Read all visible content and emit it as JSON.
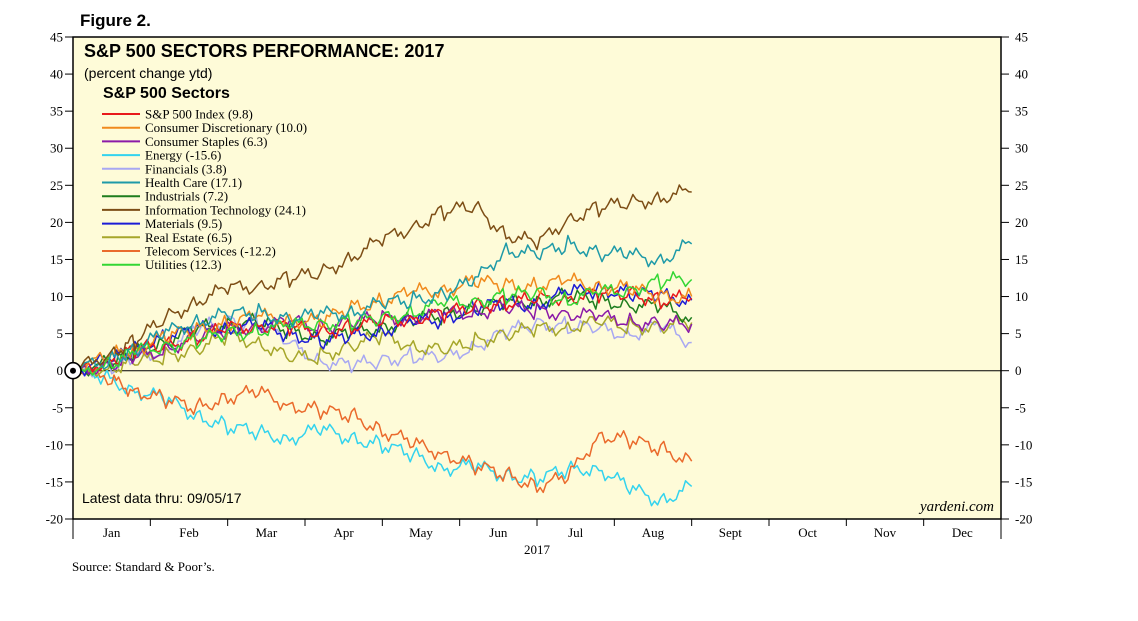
{
  "figure_label": "Figure 2.",
  "source": "Source: Standard & Poor’s.",
  "colors": {
    "background": "#fefbd8",
    "frame": "#000000",
    "zero_line": "#000000"
  },
  "chart_data": {
    "type": "line",
    "title": "S&P 500 SECTORS PERFORMANCE: 2017",
    "subtitle": "(percent change ytd)",
    "legend_title": "S&P 500 Sectors",
    "legend_position": "top-left",
    "note": "Latest data thru: 09/05/17",
    "watermark": "yardeni.com",
    "xlabel": "2017",
    "ylabel": "",
    "ylim": [
      -20,
      45
    ],
    "yticks": [
      -20,
      -15,
      -10,
      -5,
      0,
      5,
      10,
      15,
      20,
      25,
      30,
      35,
      40,
      45
    ],
    "ytick_labels": [
      "-20",
      "-15",
      "-10",
      "-5",
      "0",
      "5",
      "10",
      "15",
      "20",
      "25",
      "30",
      "35",
      "40",
      "45"
    ],
    "xlim": [
      0,
      12
    ],
    "months": [
      "Jan",
      "Feb",
      "Mar",
      "Apr",
      "May",
      "Jun",
      "Jul",
      "Aug",
      "Sept",
      "Oct",
      "Nov",
      "Dec"
    ],
    "x_unit": "months since Jan 1",
    "series": [
      {
        "name": "S&P 500 Index (9.8)",
        "color": "#e8191b",
        "points": [
          [
            0,
            0
          ],
          [
            0.5,
            1.5
          ],
          [
            0.8,
            2.8
          ],
          [
            1.2,
            3.5
          ],
          [
            1.6,
            4.5
          ],
          [
            2.0,
            5.6
          ],
          [
            2.4,
            6.2
          ],
          [
            2.8,
            5.8
          ],
          [
            3.2,
            5.2
          ],
          [
            3.6,
            6.0
          ],
          [
            4.0,
            6.5
          ],
          [
            4.4,
            7.2
          ],
          [
            4.8,
            7.5
          ],
          [
            5.2,
            8.8
          ],
          [
            5.6,
            9.2
          ],
          [
            6.0,
            9.5
          ],
          [
            6.4,
            10.0
          ],
          [
            6.8,
            10.2
          ],
          [
            7.2,
            10.5
          ],
          [
            7.6,
            9.5
          ],
          [
            8.0,
            9.8
          ]
        ]
      },
      {
        "name": "Consumer Discretionary (10.0)",
        "color": "#f08a1d",
        "points": [
          [
            0,
            0
          ],
          [
            0.5,
            2.0
          ],
          [
            0.8,
            3.0
          ],
          [
            1.2,
            4.5
          ],
          [
            1.6,
            5.5
          ],
          [
            2.0,
            6.5
          ],
          [
            2.4,
            7.2
          ],
          [
            2.8,
            7.0
          ],
          [
            3.2,
            6.5
          ],
          [
            3.6,
            8.5
          ],
          [
            4.0,
            9.5
          ],
          [
            4.4,
            10.5
          ],
          [
            4.8,
            11.0
          ],
          [
            5.2,
            12.0
          ],
          [
            5.6,
            11.5
          ],
          [
            6.0,
            11.5
          ],
          [
            6.4,
            12.0
          ],
          [
            6.8,
            11.5
          ],
          [
            7.2,
            11.0
          ],
          [
            7.6,
            10.0
          ],
          [
            8.0,
            10.0
          ]
        ]
      },
      {
        "name": "Consumer Staples (6.3)",
        "color": "#8b1aa8",
        "points": [
          [
            0,
            0
          ],
          [
            0.5,
            1.0
          ],
          [
            0.8,
            1.5
          ],
          [
            1.2,
            3.0
          ],
          [
            1.6,
            4.5
          ],
          [
            2.0,
            5.5
          ],
          [
            2.4,
            6.0
          ],
          [
            2.8,
            6.5
          ],
          [
            3.2,
            6.0
          ],
          [
            3.6,
            6.5
          ],
          [
            4.0,
            7.0
          ],
          [
            4.4,
            7.2
          ],
          [
            4.8,
            7.5
          ],
          [
            5.2,
            8.0
          ],
          [
            5.6,
            8.5
          ],
          [
            6.0,
            8.0
          ],
          [
            6.4,
            7.8
          ],
          [
            6.8,
            7.2
          ],
          [
            7.2,
            6.8
          ],
          [
            7.6,
            6.2
          ],
          [
            8.0,
            6.3
          ]
        ]
      },
      {
        "name": "Energy (-15.6)",
        "color": "#33d3ee",
        "points": [
          [
            0,
            0
          ],
          [
            0.4,
            -1.0
          ],
          [
            0.8,
            -2.5
          ],
          [
            1.2,
            -4.0
          ],
          [
            1.6,
            -6.0
          ],
          [
            2.0,
            -7.5
          ],
          [
            2.4,
            -8.5
          ],
          [
            2.8,
            -9.0
          ],
          [
            3.2,
            -8.0
          ],
          [
            3.6,
            -9.0
          ],
          [
            4.0,
            -10.0
          ],
          [
            4.4,
            -11.5
          ],
          [
            4.8,
            -13.0
          ],
          [
            5.2,
            -13.0
          ],
          [
            5.6,
            -14.0
          ],
          [
            6.0,
            -14.5
          ],
          [
            6.4,
            -13.5
          ],
          [
            6.8,
            -13.0
          ],
          [
            7.2,
            -16.0
          ],
          [
            7.6,
            -17.5
          ],
          [
            8.0,
            -15.6
          ]
        ]
      },
      {
        "name": "Financials (3.8)",
        "color": "#a8a8f2",
        "points": [
          [
            0,
            0
          ],
          [
            0.5,
            0.5
          ],
          [
            0.8,
            1.5
          ],
          [
            1.2,
            3.0
          ],
          [
            1.6,
            5.5
          ],
          [
            2.0,
            6.8
          ],
          [
            2.4,
            6.5
          ],
          [
            2.8,
            3.5
          ],
          [
            3.2,
            1.5
          ],
          [
            3.6,
            0.5
          ],
          [
            4.0,
            1.5
          ],
          [
            4.4,
            2.0
          ],
          [
            4.8,
            1.5
          ],
          [
            5.2,
            3.5
          ],
          [
            5.6,
            5.0
          ],
          [
            6.0,
            6.5
          ],
          [
            6.4,
            6.0
          ],
          [
            6.8,
            5.5
          ],
          [
            7.2,
            5.0
          ],
          [
            7.6,
            6.0
          ],
          [
            8.0,
            3.8
          ]
        ]
      },
      {
        "name": "Health Care (17.1)",
        "color": "#1e9aa8",
        "points": [
          [
            0,
            0
          ],
          [
            0.5,
            1.5
          ],
          [
            0.8,
            3.0
          ],
          [
            1.2,
            5.0
          ],
          [
            1.6,
            6.8
          ],
          [
            2.0,
            7.5
          ],
          [
            2.4,
            7.8
          ],
          [
            2.8,
            7.0
          ],
          [
            3.2,
            7.5
          ],
          [
            3.6,
            8.0
          ],
          [
            4.0,
            9.0
          ],
          [
            4.4,
            9.5
          ],
          [
            4.8,
            10.5
          ],
          [
            5.2,
            12.0
          ],
          [
            5.6,
            16.5
          ],
          [
            6.0,
            15.5
          ],
          [
            6.4,
            17.0
          ],
          [
            6.8,
            16.0
          ],
          [
            7.2,
            15.5
          ],
          [
            7.6,
            15.0
          ],
          [
            8.0,
            17.1
          ]
        ]
      },
      {
        "name": "Industrials (7.2)",
        "color": "#1e7d1e",
        "points": [
          [
            0,
            0
          ],
          [
            0.5,
            1.0
          ],
          [
            0.8,
            2.5
          ],
          [
            1.2,
            4.0
          ],
          [
            1.6,
            5.5
          ],
          [
            2.0,
            6.5
          ],
          [
            2.4,
            6.5
          ],
          [
            2.8,
            5.5
          ],
          [
            3.2,
            4.5
          ],
          [
            3.6,
            5.0
          ],
          [
            4.0,
            6.0
          ],
          [
            4.4,
            6.8
          ],
          [
            4.8,
            7.5
          ],
          [
            5.2,
            8.5
          ],
          [
            5.6,
            9.0
          ],
          [
            6.0,
            9.5
          ],
          [
            6.4,
            10.0
          ],
          [
            6.8,
            9.5
          ],
          [
            7.2,
            9.0
          ],
          [
            7.6,
            8.5
          ],
          [
            8.0,
            7.2
          ]
        ]
      },
      {
        "name": "Information Technology (24.1)",
        "color": "#7d4e16",
        "points": [
          [
            0,
            0
          ],
          [
            0.5,
            2.5
          ],
          [
            0.8,
            4.0
          ],
          [
            1.2,
            7.0
          ],
          [
            1.6,
            9.5
          ],
          [
            2.0,
            11.0
          ],
          [
            2.4,
            11.5
          ],
          [
            2.8,
            12.5
          ],
          [
            3.2,
            13.0
          ],
          [
            3.6,
            15.5
          ],
          [
            4.0,
            17.5
          ],
          [
            4.4,
            19.5
          ],
          [
            4.8,
            21.5
          ],
          [
            5.2,
            22.0
          ],
          [
            5.6,
            18.5
          ],
          [
            6.0,
            17.0
          ],
          [
            6.4,
            20.5
          ],
          [
            6.8,
            22.0
          ],
          [
            7.2,
            22.5
          ],
          [
            7.6,
            23.5
          ],
          [
            8.0,
            24.1
          ]
        ]
      },
      {
        "name": "Materials (9.5)",
        "color": "#1c1cd6",
        "points": [
          [
            0,
            0
          ],
          [
            0.5,
            1.5
          ],
          [
            0.8,
            3.0
          ],
          [
            1.2,
            4.5
          ],
          [
            1.6,
            5.5
          ],
          [
            2.0,
            5.8
          ],
          [
            2.4,
            6.0
          ],
          [
            2.8,
            5.0
          ],
          [
            3.2,
            4.0
          ],
          [
            3.6,
            4.5
          ],
          [
            4.0,
            5.5
          ],
          [
            4.4,
            6.5
          ],
          [
            4.8,
            7.0
          ],
          [
            5.2,
            8.5
          ],
          [
            5.6,
            9.0
          ],
          [
            6.0,
            9.0
          ],
          [
            6.4,
            10.5
          ],
          [
            6.8,
            11.0
          ],
          [
            7.2,
            10.5
          ],
          [
            7.6,
            10.0
          ],
          [
            8.0,
            9.5
          ]
        ]
      },
      {
        "name": "Real Estate (6.5)",
        "color": "#a6a62a",
        "points": [
          [
            0,
            0
          ],
          [
            0.5,
            0.5
          ],
          [
            0.8,
            1.0
          ],
          [
            1.2,
            2.0
          ],
          [
            1.6,
            3.0
          ],
          [
            2.0,
            4.5
          ],
          [
            2.4,
            4.0
          ],
          [
            2.8,
            1.5
          ],
          [
            3.2,
            2.0
          ],
          [
            3.6,
            3.5
          ],
          [
            4.0,
            4.5
          ],
          [
            4.4,
            3.5
          ],
          [
            4.8,
            2.5
          ],
          [
            5.2,
            4.0
          ],
          [
            5.6,
            5.0
          ],
          [
            6.0,
            5.5
          ],
          [
            6.4,
            6.0
          ],
          [
            6.8,
            6.5
          ],
          [
            7.2,
            6.0
          ],
          [
            7.6,
            6.0
          ],
          [
            8.0,
            6.5
          ]
        ]
      },
      {
        "name": "Telecom Services (-12.2)",
        "color": "#ea6a2c",
        "points": [
          [
            0,
            0
          ],
          [
            0.5,
            -1.5
          ],
          [
            0.8,
            -2.5
          ],
          [
            1.2,
            -4.0
          ],
          [
            1.6,
            -5.0
          ],
          [
            2.0,
            -3.5
          ],
          [
            2.4,
            -3.0
          ],
          [
            2.8,
            -4.5
          ],
          [
            3.2,
            -5.5
          ],
          [
            3.6,
            -6.0
          ],
          [
            4.0,
            -8.0
          ],
          [
            4.4,
            -10.0
          ],
          [
            4.8,
            -11.0
          ],
          [
            5.2,
            -13.0
          ],
          [
            5.6,
            -14.0
          ],
          [
            6.0,
            -15.5
          ],
          [
            6.4,
            -14.5
          ],
          [
            6.8,
            -8.5
          ],
          [
            7.2,
            -9.5
          ],
          [
            7.6,
            -10.5
          ],
          [
            8.0,
            -12.2
          ]
        ]
      },
      {
        "name": "Utilities (12.3)",
        "color": "#33d633",
        "points": [
          [
            0,
            0
          ],
          [
            0.5,
            1.0
          ],
          [
            0.8,
            2.5
          ],
          [
            1.2,
            3.5
          ],
          [
            1.6,
            4.0
          ],
          [
            2.0,
            5.0
          ],
          [
            2.4,
            5.5
          ],
          [
            2.8,
            6.0
          ],
          [
            3.2,
            6.5
          ],
          [
            3.6,
            6.5
          ],
          [
            4.0,
            7.0
          ],
          [
            4.4,
            8.0
          ],
          [
            4.8,
            9.0
          ],
          [
            5.2,
            9.5
          ],
          [
            5.6,
            10.0
          ],
          [
            6.0,
            10.5
          ],
          [
            6.4,
            9.5
          ],
          [
            6.8,
            10.5
          ],
          [
            7.2,
            11.0
          ],
          [
            7.6,
            12.0
          ],
          [
            8.0,
            12.3
          ]
        ]
      }
    ]
  }
}
